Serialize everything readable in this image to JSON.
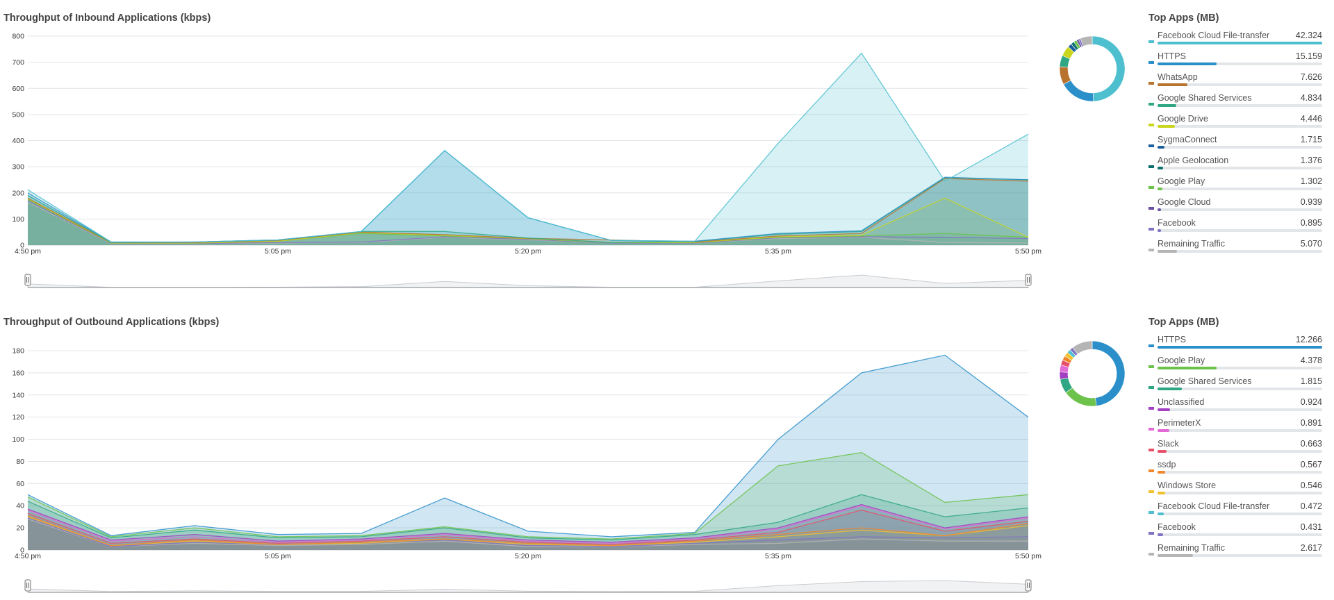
{
  "x_ticks": [
    "4:50 pm",
    "5:05 pm",
    "5:20 pm",
    "5:35 pm",
    "5:50 pm"
  ],
  "charts": [
    {
      "title": "Throughput of Inbound Applications (kbps)",
      "legend_title": "Top Apps (MB)",
      "apps": [
        {
          "name": "Facebook Cloud File-transfer",
          "value": "42.324",
          "color": "#4dbfcf"
        },
        {
          "name": "HTTPS",
          "value": "15.159",
          "color": "#2b8fc9"
        },
        {
          "name": "WhatsApp",
          "value": "7.626",
          "color": "#b8732e"
        },
        {
          "name": "Google Shared Services",
          "value": "4.834",
          "color": "#2fa684"
        },
        {
          "name": "Google Drive",
          "value": "4.446",
          "color": "#c9d61d"
        },
        {
          "name": "SygmaConnect",
          "value": "1.715",
          "color": "#1d5f9e"
        },
        {
          "name": "Apple Geolocation",
          "value": "1.376",
          "color": "#0e6e6e"
        },
        {
          "name": "Google Play",
          "value": "1.302",
          "color": "#6cc24a"
        },
        {
          "name": "Google Cloud",
          "value": "0.939",
          "color": "#6a4ea1"
        },
        {
          "name": "Facebook",
          "value": "0.895",
          "color": "#8272c4"
        },
        {
          "name": "Remaining Traffic",
          "value": "5.070",
          "color": "#b5b5b5"
        }
      ]
    },
    {
      "title": "Throughput of Outbound Applications (kbps)",
      "legend_title": "Top Apps (MB)",
      "apps": [
        {
          "name": "HTTPS",
          "value": "12.266",
          "color": "#2b8fc9"
        },
        {
          "name": "Google Play",
          "value": "4.378",
          "color": "#6cc24a"
        },
        {
          "name": "Google Shared Services",
          "value": "1.815",
          "color": "#2fa684"
        },
        {
          "name": "Unclassified",
          "value": "0.924",
          "color": "#a23fc2"
        },
        {
          "name": "PerimeterX",
          "value": "0.891",
          "color": "#e36ad6"
        },
        {
          "name": "Slack",
          "value": "0.663",
          "color": "#e8506a"
        },
        {
          "name": "ssdp",
          "value": "0.567",
          "color": "#f0872a"
        },
        {
          "name": "Windows Store",
          "value": "0.546",
          "color": "#f2c12e"
        },
        {
          "name": "Facebook Cloud File-transfer",
          "value": "0.472",
          "color": "#4dbfcf"
        },
        {
          "name": "Facebook",
          "value": "0.431",
          "color": "#8272c4"
        },
        {
          "name": "Remaining Traffic",
          "value": "2.617",
          "color": "#b5b5b5"
        }
      ]
    }
  ],
  "chart_data": [
    {
      "type": "area",
      "title": "Throughput of Inbound Applications (kbps)",
      "x": [
        "4:50 pm",
        "4:55 pm",
        "5:00 pm",
        "5:05 pm",
        "5:10 pm",
        "5:15 pm",
        "5:20 pm",
        "5:25 pm",
        "5:30 pm",
        "5:35 pm",
        "5:40 pm",
        "5:45 pm",
        "5:50 pm"
      ],
      "x_tick_labels": [
        "4:50 pm",
        "5:05 pm",
        "5:20 pm",
        "5:35 pm",
        "5:50 pm"
      ],
      "y_ticks": [
        0,
        100,
        200,
        300,
        400,
        500,
        600,
        700,
        800
      ],
      "ylim": [
        0,
        800
      ],
      "series": [
        {
          "name": "Remaining Traffic",
          "color": "#b5b5b5",
          "values": [
            165,
            5,
            5,
            8,
            10,
            30,
            20,
            8,
            8,
            25,
            30,
            10,
            8
          ]
        },
        {
          "name": "Facebook",
          "color": "#8272c4",
          "values": [
            170,
            6,
            6,
            10,
            12,
            32,
            22,
            8,
            8,
            28,
            32,
            30,
            25
          ]
        },
        {
          "name": "Google Play",
          "color": "#6cc24a",
          "values": [
            175,
            8,
            8,
            15,
            45,
            35,
            25,
            10,
            10,
            30,
            35,
            45,
            30
          ]
        },
        {
          "name": "Google Drive",
          "color": "#c9d61d",
          "values": [
            178,
            8,
            8,
            15,
            48,
            38,
            25,
            10,
            10,
            32,
            38,
            180,
            30
          ]
        },
        {
          "name": "WhatsApp",
          "color": "#b8732e",
          "values": [
            180,
            10,
            10,
            18,
            50,
            40,
            26,
            20,
            12,
            35,
            45,
            255,
            245
          ]
        },
        {
          "name": "Google Shared Services",
          "color": "#2fa684",
          "values": [
            190,
            10,
            12,
            20,
            52,
            52,
            27,
            10,
            14,
            42,
            52,
            258,
            250
          ]
        },
        {
          "name": "HTTPS",
          "color": "#2b8fc9",
          "values": [
            200,
            12,
            12,
            20,
            52,
            362,
            105,
            18,
            15,
            45,
            55,
            260,
            250
          ]
        },
        {
          "name": "Facebook Cloud File-transfer",
          "color": "#4dbfcf",
          "values": [
            212,
            12,
            12,
            20,
            52,
            362,
            105,
            18,
            15,
            390,
            735,
            245,
            425
          ]
        }
      ]
    },
    {
      "type": "area",
      "title": "Throughput of Outbound Applications (kbps)",
      "x": [
        "4:50 pm",
        "4:55 pm",
        "5:00 pm",
        "5:05 pm",
        "5:10 pm",
        "5:15 pm",
        "5:20 pm",
        "5:25 pm",
        "5:30 pm",
        "5:35 pm",
        "5:40 pm",
        "5:45 pm",
        "5:50 pm"
      ],
      "x_tick_labels": [
        "4:50 pm",
        "5:05 pm",
        "5:20 pm",
        "5:35 pm",
        "5:50 pm"
      ],
      "y_ticks": [
        0,
        20,
        40,
        60,
        80,
        100,
        120,
        140,
        160,
        180
      ],
      "ylim": [
        0,
        180
      ],
      "series": [
        {
          "name": "Remaining Traffic",
          "color": "#b5b5b5",
          "values": [
            28,
            3,
            6,
            4,
            5,
            8,
            3,
            3,
            5,
            6,
            10,
            8,
            8
          ]
        },
        {
          "name": "Facebook",
          "color": "#8272c4",
          "values": [
            29,
            3,
            7,
            5,
            6,
            9,
            4,
            3,
            6,
            9,
            12,
            11,
            12
          ]
        },
        {
          "name": "Windows Store",
          "color": "#f2c12e",
          "values": [
            30,
            4,
            8,
            5,
            6,
            10,
            5,
            4,
            7,
            12,
            18,
            13,
            22
          ]
        },
        {
          "name": "ssdp",
          "color": "#f0872a",
          "values": [
            31,
            4,
            9,
            5,
            7,
            10,
            6,
            4,
            8,
            14,
            20,
            13,
            24
          ]
        },
        {
          "name": "Slack",
          "color": "#e8506a",
          "values": [
            33,
            6,
            10,
            6,
            8,
            12,
            7,
            5,
            9,
            16,
            36,
            17,
            26
          ]
        },
        {
          "name": "PerimeterX",
          "color": "#e36ad6",
          "values": [
            36,
            8,
            12,
            7,
            9,
            14,
            8,
            6,
            10,
            19,
            40,
            19,
            29
          ]
        },
        {
          "name": "Unclassified",
          "color": "#a23fc2",
          "values": [
            37,
            9,
            14,
            8,
            10,
            15,
            9,
            7,
            11,
            20,
            41,
            20,
            30
          ]
        },
        {
          "name": "Google Shared Services",
          "color": "#2fa684",
          "values": [
            44,
            11,
            18,
            11,
            12,
            20,
            11,
            9,
            14,
            25,
            50,
            30,
            38
          ]
        },
        {
          "name": "Google Play",
          "color": "#6cc24a",
          "values": [
            48,
            12,
            20,
            12,
            13,
            21,
            12,
            10,
            15,
            76,
            88,
            43,
            50
          ]
        },
        {
          "name": "HTTPS",
          "color": "#2b8fc9",
          "values": [
            50,
            13,
            22,
            14,
            15,
            47,
            17,
            12,
            16,
            100,
            160,
            176,
            120
          ]
        }
      ]
    }
  ]
}
